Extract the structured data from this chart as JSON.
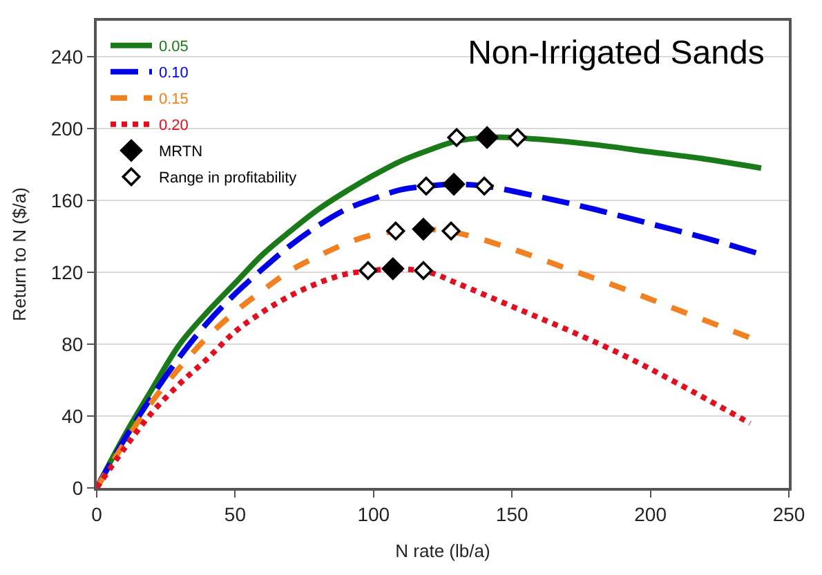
{
  "chart_data": {
    "type": "line",
    "title": "Non-Irrigated Sands",
    "xlabel": "N rate (lb/a)",
    "ylabel": "Return to N ($/a)",
    "xlim": [
      0,
      250
    ],
    "xticks": [
      0,
      50,
      100,
      150,
      200,
      250
    ],
    "ylim": [
      0,
      260
    ],
    "yticks": [
      0,
      40,
      80,
      120,
      160,
      200,
      240
    ],
    "grid": "y",
    "legend": "top left",
    "marker": "none",
    "series": [
      {
        "name": "0.05",
        "color": "#1a7a1a",
        "line_style": "solid",
        "x": [
          0,
          10,
          20,
          30,
          40,
          50,
          60,
          70,
          80,
          90,
          100,
          110,
          120,
          130,
          141,
          150,
          160,
          180,
          200,
          220,
          240
        ],
        "values": [
          0,
          29,
          55,
          80,
          98,
          114,
          130,
          143,
          155,
          165,
          174,
          182,
          188,
          193,
          195,
          195,
          194,
          191,
          187,
          183,
          178
        ]
      },
      {
        "name": "0.10",
        "color": "#0000e6",
        "line_style": "dashed",
        "x": [
          0,
          10,
          20,
          30,
          40,
          50,
          60,
          70,
          80,
          90,
          100,
          110,
          120,
          129,
          140,
          160,
          180,
          200,
          220,
          240
        ],
        "values": [
          0,
          27,
          51,
          73,
          92,
          108,
          122,
          135,
          146,
          155,
          161,
          166,
          168,
          169,
          168,
          162,
          155,
          147,
          139,
          130
        ]
      },
      {
        "name": "0.15",
        "color": "#f08020",
        "line_style": "dashed",
        "x": [
          0,
          10,
          20,
          30,
          40,
          50,
          60,
          70,
          80,
          90,
          100,
          110,
          118,
          130,
          150,
          170,
          190,
          210,
          237
        ],
        "values": [
          0,
          25,
          48,
          67,
          84,
          98,
          110,
          121,
          129,
          136,
          141,
          143,
          144,
          142,
          133,
          122,
          111,
          99,
          83
        ]
      },
      {
        "name": "0.20",
        "color": "#e01020",
        "line_style": "dotted",
        "x": [
          0,
          10,
          20,
          30,
          40,
          50,
          60,
          70,
          80,
          90,
          100,
          107,
          120,
          130,
          150,
          170,
          190,
          210,
          236
        ],
        "values": [
          0,
          22,
          42,
          58,
          72,
          87,
          98,
          107,
          114,
          119,
          121,
          122,
          120,
          114,
          101,
          88,
          74,
          58,
          36
        ]
      },
      {
        "name": "MRTN",
        "type": "scatter",
        "marker": "diamond",
        "color": "#000000",
        "x": [
          141,
          129,
          118,
          107
        ],
        "values": [
          195,
          169,
          144,
          122
        ]
      },
      {
        "name": "Range in profitability",
        "type": "scatter",
        "marker": "diamond-open",
        "color": "#000000",
        "x": [
          130,
          152,
          119,
          140,
          108,
          128,
          98,
          118
        ],
        "values": [
          195,
          195,
          168,
          168,
          143,
          143,
          121,
          121
        ]
      }
    ]
  }
}
